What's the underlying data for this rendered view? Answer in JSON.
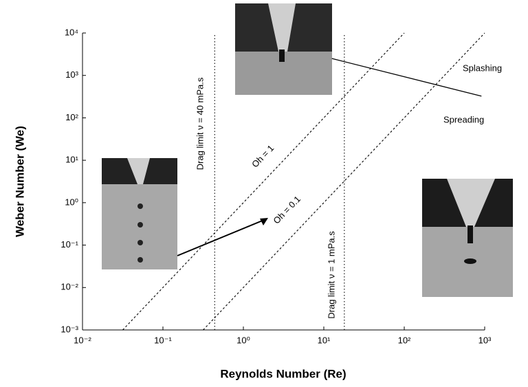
{
  "chart_data": {
    "type": "line",
    "x_label": "Reynolds Number (Re)",
    "y_label": "Weber Number (We)",
    "x_log": true,
    "y_log": true,
    "xlim": [
      0.01,
      1000
    ],
    "ylim": [
      0.001,
      10000
    ],
    "xticks": [
      {
        "value": 0.01,
        "label": "10⁻²"
      },
      {
        "value": 0.1,
        "label": "10⁻¹"
      },
      {
        "value": 1,
        "label": "10⁰"
      },
      {
        "value": 10,
        "label": "10¹"
      },
      {
        "value": 100,
        "label": "10²"
      },
      {
        "value": 1000,
        "label": "10³"
      }
    ],
    "yticks": [
      {
        "value": 0.001,
        "label": "10⁻³"
      },
      {
        "value": 0.01,
        "label": "10⁻²"
      },
      {
        "value": 0.1,
        "label": "10⁻¹"
      },
      {
        "value": 1,
        "label": "10⁰"
      },
      {
        "value": 10,
        "label": "10¹"
      },
      {
        "value": 100,
        "label": "10²"
      },
      {
        "value": 1000,
        "label": "10³"
      },
      {
        "value": 10000,
        "label": "10⁴"
      }
    ],
    "series": [
      {
        "name": "Oh = 1",
        "color": "#000000",
        "style": "dashed",
        "x": [
          0.0316,
          100
        ],
        "values": [
          0.001,
          10000
        ]
      },
      {
        "name": "Oh = 0.1",
        "color": "#000000",
        "style": "dashed",
        "x": [
          0.316,
          1000
        ],
        "values": [
          0.001,
          10000
        ]
      },
      {
        "name": "Drag limit ν = 40 mPa.s",
        "color": "#000000",
        "style": "dotted",
        "x": [
          0.44,
          0.44
        ],
        "values": [
          0.001,
          10000
        ]
      },
      {
        "name": "Drag limit ν = 1 mPa.s",
        "color": "#000000",
        "style": "dotted",
        "x": [
          18,
          18
        ],
        "values": [
          0.001,
          10000
        ]
      },
      {
        "color": "#000000",
        "style": "solid",
        "x": [
          12.6,
          912
        ],
        "values": [
          2500,
          324
        ]
      }
    ],
    "annotations": [
      "Splashing",
      "Spreading"
    ]
  }
}
